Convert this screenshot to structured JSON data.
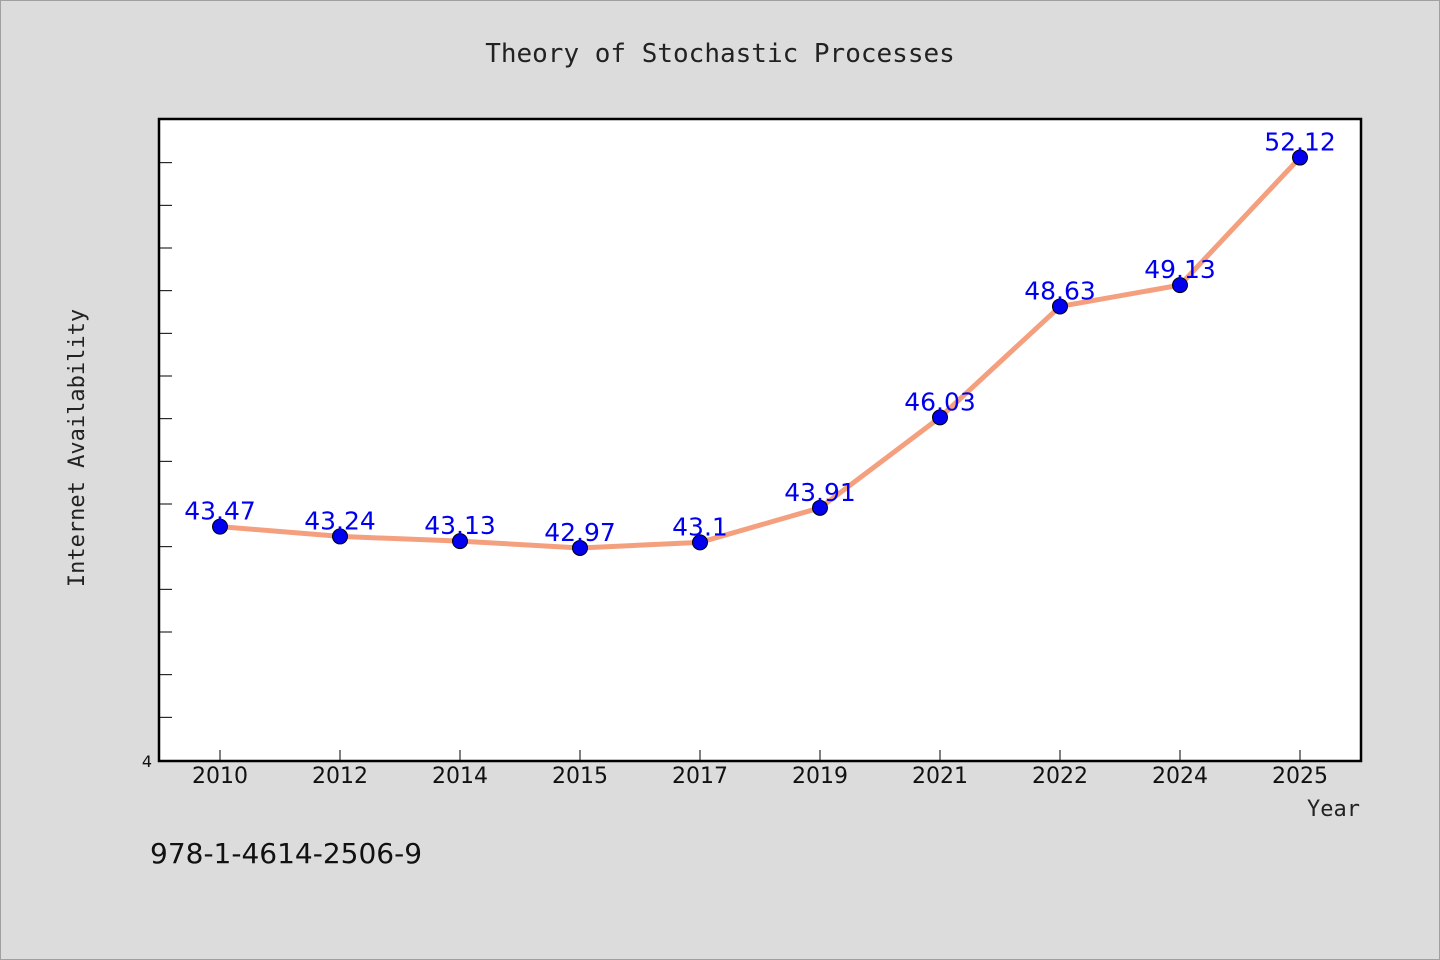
{
  "chart_data": {
    "type": "line",
    "title": "Theory of Stochastic Processes",
    "xlabel": "Year",
    "ylabel": "Internet Availability",
    "categories": [
      "2010",
      "2012",
      "2014",
      "2015",
      "2017",
      "2019",
      "2021",
      "2022",
      "2024",
      "2025"
    ],
    "series": [
      {
        "values": [
          43.47,
          43.24,
          43.13,
          42.97,
          43.1,
          43.91,
          46.03,
          48.63,
          49.13,
          52.12
        ],
        "labels": [
          "43.47",
          "43.24",
          "43.13",
          "42.97",
          "43.1",
          "43.91",
          "46.03",
          "48.63",
          "49.13",
          "52.12"
        ]
      }
    ],
    "ylim": [
      38,
      53
    ],
    "ytick_label": "4",
    "line_color": "#f4a07e",
    "marker_color": "#0000ee",
    "label_color": "#0000ee",
    "grid": false,
    "legend": "none"
  },
  "footnote": "978-1-4614-2506-9"
}
